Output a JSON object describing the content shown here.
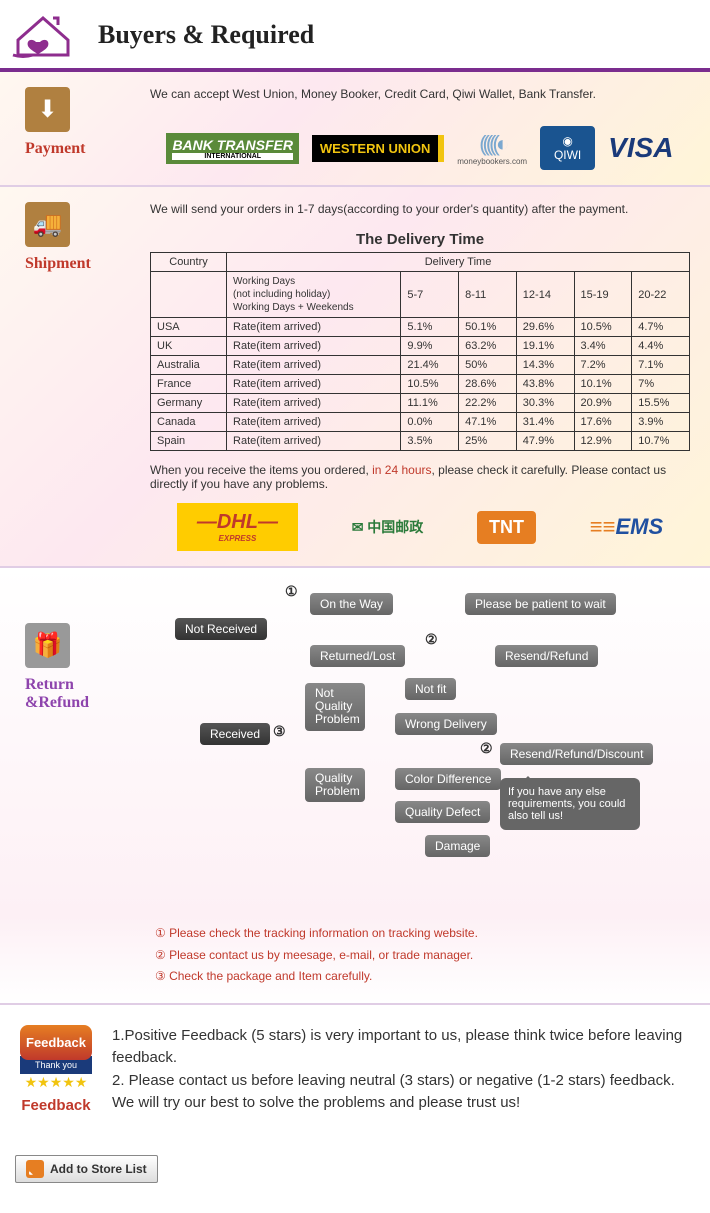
{
  "header": {
    "title": "Buyers & Required"
  },
  "payment": {
    "label": "Payment",
    "text": "We can accept West Union, Money Booker, Credit Card, Qiwi Wallet, Bank Transfer.",
    "logos": {
      "bank_transfer": "BANK TRANSFER",
      "bank_transfer_sub": "INTERNATIONAL",
      "western_union": "WESTERN UNION",
      "moneybookers": "(((((◐",
      "moneybookers_sub": "moneybookers.com",
      "qiwi": "QIWI",
      "visa": "VISA"
    }
  },
  "shipment": {
    "label": "Shipment",
    "text": "We will send your orders in 1-7 days(according to your order's quantity) after the payment.",
    "table_title": "The Delivery Time",
    "headers": {
      "country": "Country",
      "delivery": "Delivery Time"
    },
    "workdays": "Working Days\n(not including holiday)\nWorking Days + Weekends",
    "ranges": [
      "5-7",
      "8-11",
      "12-14",
      "15-19",
      "20-22"
    ],
    "rate_label": "Rate(item arrived)",
    "rows": [
      {
        "country": "USA",
        "vals": [
          "5.1%",
          "50.1%",
          "29.6%",
          "10.5%",
          "4.7%"
        ]
      },
      {
        "country": "UK",
        "vals": [
          "9.9%",
          "63.2%",
          "19.1%",
          "3.4%",
          "4.4%"
        ]
      },
      {
        "country": "Australia",
        "vals": [
          "21.4%",
          "50%",
          "14.3%",
          "7.2%",
          "7.1%"
        ]
      },
      {
        "country": "France",
        "vals": [
          "10.5%",
          "28.6%",
          "43.8%",
          "10.1%",
          "7%"
        ]
      },
      {
        "country": "Germany",
        "vals": [
          "11.1%",
          "22.2%",
          "30.3%",
          "20.9%",
          "15.5%"
        ]
      },
      {
        "country": "Canada",
        "vals": [
          "0.0%",
          "47.1%",
          "31.4%",
          "17.6%",
          "3.9%"
        ]
      },
      {
        "country": "Spain",
        "vals": [
          "3.5%",
          "25%",
          "47.9%",
          "12.9%",
          "10.7%"
        ]
      }
    ],
    "receive_pre": "When you receive the items you ordered, ",
    "receive_hl": "in 24 hours",
    "receive_post": ", please check it carefully. Please contact us directly if you have any problems.",
    "carriers": {
      "dhl": "—DHL—",
      "dhl_sub": "EXPRESS",
      "china_post": "✉ 中国邮政",
      "tnt": "TNT",
      "ems": "EMS",
      "ems_stripes": "≡≡"
    }
  },
  "refund": {
    "label": "Return &Refund",
    "boxes": {
      "not_received": "Not Received",
      "received": "Received",
      "on_the_way": "On the Way",
      "returned_lost": "Returned/Lost",
      "not_quality": "Not Quality Problem",
      "quality": "Quality Problem",
      "patient": "Please be patient to wait",
      "resend_refund": "Resend/Refund",
      "not_fit": "Not fit",
      "wrong_delivery": "Wrong Delivery",
      "color_diff": "Color Difference",
      "quality_defect": "Quality Defect",
      "damage": "Damage",
      "resend_discount": "Resend/Refund/Discount",
      "speech": "If you have any else requirements, you could also tell us!"
    },
    "nums": {
      "n1": "①",
      "n2": "②",
      "n2b": "②",
      "n3": "③"
    },
    "notes": [
      "① Please check the tracking information on tracking website.",
      "② Please contact us by meesage, e-mail, or trade manager.",
      "③ Check the package and Item carefully."
    ]
  },
  "feedback": {
    "badge": "Feedback",
    "badge_sub": "Thank you",
    "stars": "★★★★★",
    "label": "Feedback",
    "text1": "1.Positive Feedback (5 stars) is very important to us, please think twice before leaving feedback.",
    "text2": "2. Please contact us before leaving neutral (3 stars) or negative (1-2 stars) feedback. We will try our best to solve the problems and please trust us!"
  },
  "store_button": "Add to Store List"
}
